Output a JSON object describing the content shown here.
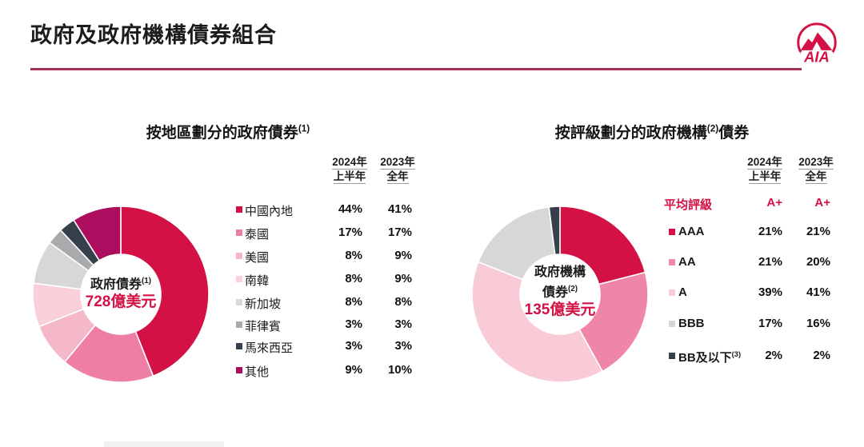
{
  "page": {
    "title": "政府及政府機構債券組合",
    "logo_text": "AIA",
    "brand_color": "#D31145",
    "rule_color": "#A43158"
  },
  "left_chart": {
    "title": "按地區劃分的政府債券",
    "title_sup": "(1)",
    "col_headers": [
      {
        "line1": "2024年",
        "line2": "上半年"
      },
      {
        "line1": "2023年",
        "line2": "全年"
      }
    ],
    "center": {
      "line1": "政府債券",
      "line1_sup": "(1)",
      "value": "728億美元"
    },
    "rows": [
      {
        "label": "中國內地",
        "v2024": "44%",
        "v2023": "41%",
        "color": "#D31145"
      },
      {
        "label": "泰國",
        "v2024": "17%",
        "v2023": "17%",
        "color": "#EE7EA5"
      },
      {
        "label": "美國",
        "v2024": "8%",
        "v2023": "9%",
        "color": "#F5B8C9"
      },
      {
        "label": "南韓",
        "v2024": "8%",
        "v2023": "9%",
        "color": "#F9CFDA"
      },
      {
        "label": "新加坡",
        "v2024": "8%",
        "v2023": "8%",
        "color": "#D7D7D5"
      },
      {
        "label": "菲律賓",
        "v2024": "3%",
        "v2023": "3%",
        "color": "#A9AAAC"
      },
      {
        "label": "馬來西亞",
        "v2024": "3%",
        "v2023": "3%",
        "color": "#36404A"
      },
      {
        "label": "其他",
        "v2024": "9%",
        "v2023": "10%",
        "color": "#AC0D5F"
      }
    ]
  },
  "right_chart": {
    "title_pre": "按評級劃分的政府機構",
    "title_sup": "(2)",
    "title_post": "債券",
    "col_headers": [
      {
        "line1": "2024年",
        "line2": "上半年"
      },
      {
        "line1": "2023年",
        "line2": "全年"
      }
    ],
    "center": {
      "line1": "政府機構",
      "line2": "債券",
      "line2_sup": "(2)",
      "value": "135億美元"
    },
    "avg": {
      "label": "平均評級",
      "v2024": "A+",
      "v2023": "A+"
    },
    "rows": [
      {
        "label": "AAA",
        "v2024": "21%",
        "v2023": "21%",
        "color": "#D31145"
      },
      {
        "label": "AA",
        "v2024": "21%",
        "v2023": "20%",
        "color": "#EF86A8"
      },
      {
        "label": "A",
        "v2024": "39%",
        "v2023": "41%",
        "color": "#F9CBD7"
      },
      {
        "label": "BBB",
        "v2024": "17%",
        "v2023": "16%",
        "color": "#D7D7D5"
      },
      {
        "label": "BB及以下",
        "sup": "(3)",
        "v2024": "2%",
        "v2023": "2%",
        "color": "#36404A"
      }
    ]
  },
  "chart_data": [
    {
      "type": "pie",
      "subtype": "donut",
      "title": "按地區劃分的政府債券(1)",
      "center_label": "政府債券(1) 728億美元",
      "categories": [
        "中國內地",
        "泰國",
        "美國",
        "南韓",
        "新加坡",
        "菲律賓",
        "馬來西亞",
        "其他"
      ],
      "series": [
        {
          "name": "2024年上半年",
          "values": [
            44,
            17,
            8,
            8,
            8,
            3,
            3,
            9
          ]
        },
        {
          "name": "2023年全年",
          "values": [
            41,
            17,
            9,
            9,
            8,
            3,
            3,
            10
          ]
        }
      ],
      "displayed_series": "2024年上半年",
      "colors": [
        "#D31145",
        "#EE7EA5",
        "#F5B8C9",
        "#F9CFDA",
        "#D7D7D5",
        "#A9AAAC",
        "#36404A",
        "#AC0D5F"
      ],
      "legend_position": "right",
      "start_angle_deg": 0,
      "direction": "clockwise"
    },
    {
      "type": "pie",
      "subtype": "donut",
      "title": "按評級劃分的政府機構(2)債券",
      "center_label": "政府機構債券(2) 135億美元",
      "categories": [
        "AAA",
        "AA",
        "A",
        "BBB",
        "BB及以下(3)"
      ],
      "series": [
        {
          "name": "2024年上半年",
          "values": [
            21,
            21,
            39,
            17,
            2
          ]
        },
        {
          "name": "2023年全年",
          "values": [
            21,
            20,
            41,
            16,
            2
          ]
        }
      ],
      "displayed_series": "2024年上半年",
      "average_rating": {
        "2024年上半年": "A+",
        "2023年全年": "A+"
      },
      "colors": [
        "#D31145",
        "#EF86A8",
        "#F9CBD7",
        "#D7D7D5",
        "#36404A"
      ],
      "legend_position": "right",
      "start_angle_deg": 0,
      "direction": "clockwise"
    }
  ]
}
